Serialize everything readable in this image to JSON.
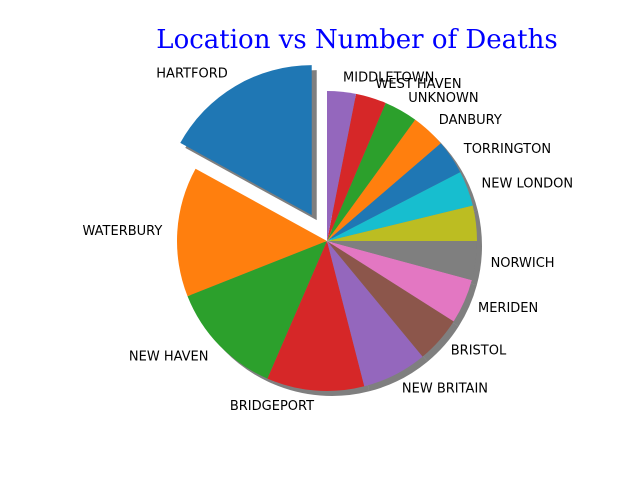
{
  "chart_data": {
    "type": "pie",
    "title": "Location vs Number of Deaths",
    "title_color": "#0000ff",
    "shadow": true,
    "exploded": [
      "HARTFORD"
    ],
    "start_angle_deg": 90,
    "direction": "counterclockwise",
    "slices": [
      {
        "label": "HARTFORD",
        "value": 17.0,
        "color": "#1f77b4"
      },
      {
        "label": "WATERBURY",
        "value": 14.0,
        "color": "#ff7f0e"
      },
      {
        "label": "NEW HAVEN",
        "value": 12.5,
        "color": "#2ca02c"
      },
      {
        "label": "BRIDGEPORT",
        "value": 10.5,
        "color": "#d62728"
      },
      {
        "label": "NEW BRITAIN",
        "value": 7.0,
        "color": "#9467bd"
      },
      {
        "label": "BRISTOL",
        "value": 5.0,
        "color": "#8c564b"
      },
      {
        "label": "MERIDEN",
        "value": 4.8,
        "color": "#e377c2"
      },
      {
        "label": "NORWICH",
        "value": 4.2,
        "color": "#7f7f7f"
      },
      {
        "label": "",
        "value": 3.8,
        "color": "#bcbd22"
      },
      {
        "label": "NEW LONDON",
        "value": 3.8,
        "color": "#17becf"
      },
      {
        "label": "TORRINGTON",
        "value": 3.7,
        "color": "#1f77b4"
      },
      {
        "label": "DANBURY",
        "value": 3.7,
        "color": "#ff7f0e"
      },
      {
        "label": "UNKNOWN",
        "value": 3.6,
        "color": "#2ca02c"
      },
      {
        "label": "WEST HAVEN",
        "value": 3.3,
        "color": "#d62728"
      },
      {
        "label": "MIDDLETOWN",
        "value": 3.1,
        "color": "#9467bd"
      }
    ]
  }
}
